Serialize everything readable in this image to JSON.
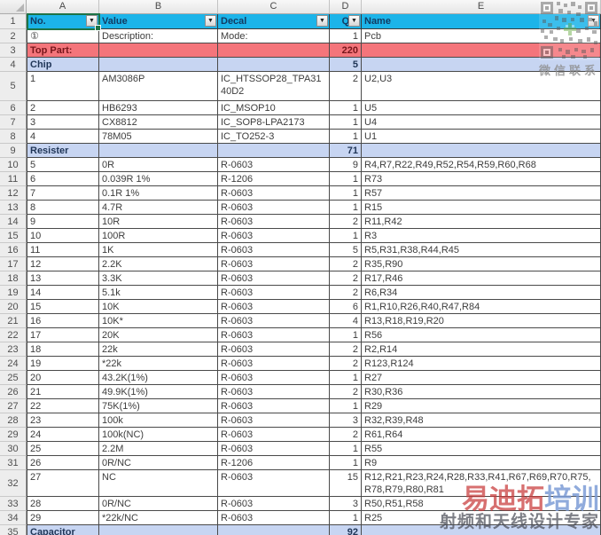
{
  "column_letters": [
    "A",
    "B",
    "C",
    "D",
    "E"
  ],
  "watermark_top": {
    "label": "微信联系"
  },
  "watermark_bottom": {
    "brand_red": "易迪拓",
    "brand_blue": "培训",
    "tagline": "射频和天线设计专家"
  },
  "table": {
    "rows": [
      {
        "num": "1",
        "type": "header",
        "a": "No.",
        "b": "Value",
        "c": "Decal",
        "d": "Qty",
        "e": "Name"
      },
      {
        "num": "2",
        "type": "normal",
        "a": "①",
        "b": "Description:",
        "c": "Mode:",
        "d": "1",
        "e": "Pcb"
      },
      {
        "num": "3",
        "type": "red",
        "a": "Top Part:",
        "b": "",
        "c": "",
        "d": "220",
        "e": ""
      },
      {
        "num": "4",
        "type": "blue",
        "a": "Chip",
        "b": "",
        "c": "",
        "d": "5",
        "e": ""
      },
      {
        "num": "5",
        "type": "normal",
        "h": 33,
        "a": "1",
        "b": "AM3086P",
        "c": "IC_HTSSOP28_TPA3140D2",
        "d": "2",
        "e": "U2,U3"
      },
      {
        "num": "6",
        "type": "normal",
        "a": "2",
        "b": "HB6293",
        "c": "IC_MSOP10",
        "d": "1",
        "e": "U5"
      },
      {
        "num": "7",
        "type": "normal",
        "a": "3",
        "b": "CX8812",
        "c": "IC_SOP8-LPA2173",
        "d": "1",
        "e": "U4"
      },
      {
        "num": "8",
        "type": "normal",
        "a": "4",
        "b": "78M05",
        "c": "IC_TO252-3",
        "d": "1",
        "e": "U1"
      },
      {
        "num": "9",
        "type": "blue",
        "a": "Resister",
        "b": "",
        "c": "",
        "d": "71",
        "e": ""
      },
      {
        "num": "10",
        "type": "normal",
        "a": "5",
        "b": "0R",
        "c": "R-0603",
        "d": "9",
        "e": "R4,R7,R22,R49,R52,R54,R59,R60,R68"
      },
      {
        "num": "11",
        "type": "normal",
        "a": "6",
        "b": "0.039R 1%",
        "c": "R-1206",
        "d": "1",
        "e": "R73"
      },
      {
        "num": "12",
        "type": "normal",
        "a": "7",
        "b": "0.1R 1%",
        "c": "R-0603",
        "d": "1",
        "e": "R57"
      },
      {
        "num": "13",
        "type": "normal",
        "a": "8",
        "b": "4.7R",
        "c": "R-0603",
        "d": "1",
        "e": "R15"
      },
      {
        "num": "14",
        "type": "normal",
        "a": "9",
        "b": "10R",
        "c": "R-0603",
        "d": "2",
        "e": "R11,R42"
      },
      {
        "num": "15",
        "type": "normal",
        "a": "10",
        "b": "100R",
        "c": "R-0603",
        "d": "1",
        "e": "R3"
      },
      {
        "num": "16",
        "type": "normal",
        "a": "11",
        "b": "1K",
        "c": "R-0603",
        "d": "5",
        "e": "R5,R31,R38,R44,R45"
      },
      {
        "num": "17",
        "type": "normal",
        "a": "12",
        "b": "2.2K",
        "c": "R-0603",
        "d": "2",
        "e": "R35,R90"
      },
      {
        "num": "18",
        "type": "normal",
        "a": "13",
        "b": "3.3K",
        "c": "R-0603",
        "d": "2",
        "e": "R17,R46"
      },
      {
        "num": "19",
        "type": "normal",
        "a": "14",
        "b": "5.1k",
        "c": "R-0603",
        "d": "2",
        "e": "R6,R34"
      },
      {
        "num": "20",
        "type": "normal",
        "a": "15",
        "b": "10K",
        "c": "R-0603",
        "d": "6",
        "e": "R1,R10,R26,R40,R47,R84"
      },
      {
        "num": "21",
        "type": "normal",
        "a": "16",
        "b": "10K*",
        "c": "R-0603",
        "d": "4",
        "e": "R13,R18,R19,R20"
      },
      {
        "num": "22",
        "type": "normal",
        "a": "17",
        "b": "20K",
        "c": "R-0603",
        "d": "1",
        "e": "R56"
      },
      {
        "num": "23",
        "type": "normal",
        "a": "18",
        "b": "22k",
        "c": "R-0603",
        "d": "2",
        "e": "R2,R14"
      },
      {
        "num": "24",
        "type": "normal",
        "a": "19",
        "b": "*22k",
        "c": "R-0603",
        "d": "2",
        "e": "R123,R124"
      },
      {
        "num": "25",
        "type": "normal",
        "a": "20",
        "b": "43.2K(1%)",
        "c": "R-0603",
        "d": "1",
        "e": "R27"
      },
      {
        "num": "26",
        "type": "normal",
        "a": "21",
        "b": "49.9K(1%)",
        "c": "R-0603",
        "d": "2",
        "e": "R30,R36"
      },
      {
        "num": "27",
        "type": "normal",
        "a": "22",
        "b": "75K(1%)",
        "c": "R-0603",
        "d": "1",
        "e": "R29"
      },
      {
        "num": "28",
        "type": "normal",
        "a": "23",
        "b": "100k",
        "c": "R-0603",
        "d": "3",
        "e": "R32,R39,R48"
      },
      {
        "num": "29",
        "type": "normal",
        "a": "24",
        "b": "100k(NC)",
        "c": "R-0603",
        "d": "2",
        "e": "R61,R64"
      },
      {
        "num": "30",
        "type": "normal",
        "a": "25",
        "b": "2.2M",
        "c": "R-0603",
        "d": "1",
        "e": "R55"
      },
      {
        "num": "31",
        "type": "normal",
        "a": "26",
        "b": "0R/NC",
        "c": "R-1206",
        "d": "1",
        "e": "R9"
      },
      {
        "num": "32",
        "type": "normal",
        "h": 30,
        "a": "27",
        "b": "NC",
        "c": "R-0603",
        "d": "15",
        "e": "R12,R21,R23,R24,R28,R33,R41,R67,R69,R70,R75,R78,R79,R80,R81"
      },
      {
        "num": "33",
        "type": "normal",
        "a": "28",
        "b": "0R/NC",
        "c": "R-0603",
        "d": "3",
        "e": "R50,R51,R58"
      },
      {
        "num": "34",
        "type": "normal",
        "a": "29",
        "b": "*22k/NC",
        "c": "R-0603",
        "d": "1",
        "e": "R25"
      },
      {
        "num": "35",
        "type": "blue",
        "a": "Capacitor",
        "b": "",
        "c": "",
        "d": "92",
        "e": ""
      }
    ]
  },
  "colors": {
    "header_fill": "#1cb4e9",
    "section_red_fill": "#f4757b",
    "section_blue_fill": "#c7d5f2",
    "selection_border": "#1e7346"
  }
}
